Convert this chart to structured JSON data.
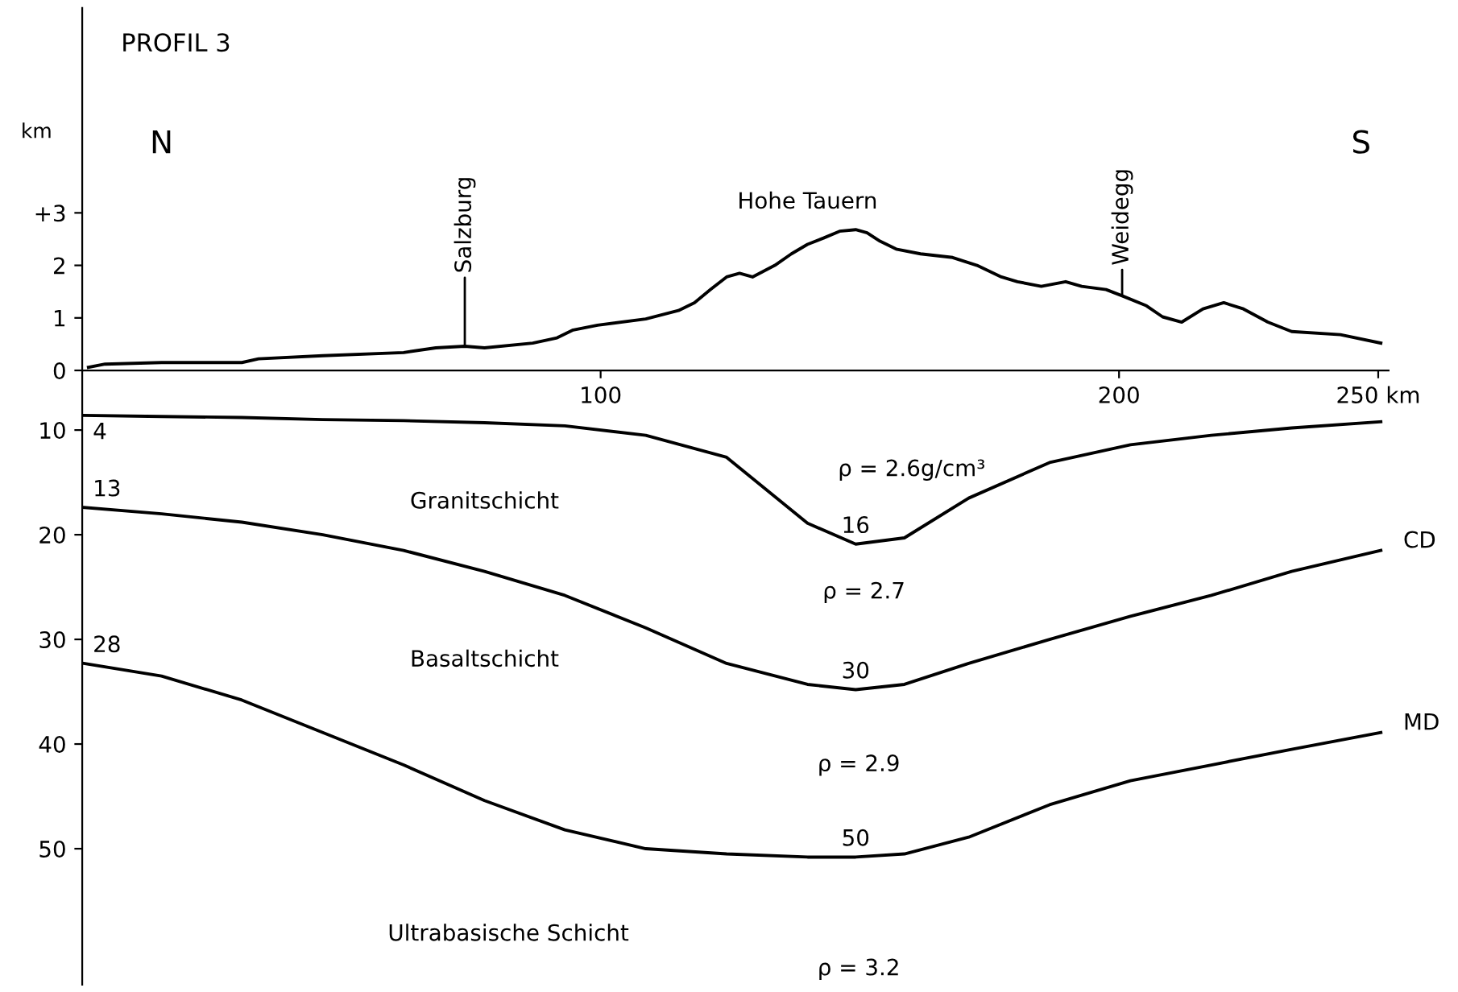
{
  "chart_data": [
    {
      "type": "line",
      "title": "PROFIL 3",
      "ylabel": "km",
      "xlim": [
        0,
        252
      ],
      "xticks": [
        100,
        200,
        {
          "value": 250,
          "label": "250 km"
        }
      ],
      "ylim": [
        0,
        6.9
      ],
      "yticks": [
        0,
        1,
        2,
        {
          "value": 3,
          "label": "+3"
        }
      ],
      "grid": false,
      "legend": false,
      "series": [
        {
          "color": "#000000",
          "x": [
            1.2,
            4.4,
            15.3,
            30.8,
            34.0,
            46.4,
            62.0,
            68.2,
            73.8,
            77.6,
            86.9,
            91.6,
            94.7,
            99.4,
            108.7,
            115.0,
            118.1,
            121.2,
            124.3,
            126.8,
            129.3,
            133.6,
            136.8,
            139.9,
            143.0,
            146.1,
            149.2,
            151.4,
            153.9,
            157.0,
            161.7,
            167.9,
            172.6,
            177.3,
            180.4,
            185.0,
            189.7,
            192.8,
            197.5,
            200.6,
            205.3,
            208.4,
            212.1,
            216.2,
            220.2,
            224.0,
            228.7,
            233.3,
            242.7,
            250.5
          ],
          "values": [
            0.06,
            0.12,
            0.15,
            0.15,
            0.22,
            0.28,
            0.34,
            0.43,
            0.46,
            0.43,
            0.52,
            0.62,
            0.77,
            0.86,
            0.98,
            1.14,
            1.29,
            1.54,
            1.78,
            1.85,
            1.78,
            2.0,
            2.22,
            2.4,
            2.52,
            2.65,
            2.68,
            2.62,
            2.46,
            2.31,
            2.22,
            2.15,
            2.0,
            1.78,
            1.69,
            1.6,
            1.69,
            1.6,
            1.54,
            1.42,
            1.23,
            1.02,
            0.92,
            1.17,
            1.29,
            1.17,
            0.92,
            0.74,
            0.68,
            0.52
          ]
        }
      ],
      "annotations": [
        "N",
        "S",
        "Hohe Tauern",
        {
          "text": "Salzburg",
          "x": 73.8,
          "y": 0.46
        },
        {
          "text": "Weidegg",
          "x": 200.6,
          "y": 1.45
        }
      ]
    },
    {
      "type": "line",
      "xlim": [
        0,
        252
      ],
      "ylim": [
        63,
        4.3
      ],
      "yticks": [
        10,
        20,
        30,
        40,
        50
      ],
      "tick_labels": "y",
      "grid": false,
      "legend": false,
      "x": [
        0.3,
        15.3,
        30.8,
        46.4,
        62.0,
        77.6,
        93.1,
        108.7,
        124.3,
        139.9,
        149.2,
        158.6,
        171.0,
        186.6,
        202.2,
        217.8,
        233.3,
        250.5
      ],
      "series": [
        {
          "color": "#000000",
          "values": [
            8.6,
            8.7,
            8.8,
            9.0,
            9.1,
            9.3,
            9.6,
            10.5,
            12.6,
            18.9,
            20.9,
            20.3,
            16.5,
            13.1,
            11.4,
            10.5,
            9.8,
            9.2
          ]
        },
        {
          "name": "CD",
          "color": "#000000",
          "values": [
            17.4,
            18.0,
            18.8,
            20.0,
            21.5,
            23.5,
            25.8,
            28.9,
            32.3,
            34.3,
            34.8,
            34.3,
            32.3,
            30.0,
            27.8,
            25.8,
            23.5,
            21.5
          ]
        },
        {
          "name": "MD",
          "color": "#000000",
          "values": [
            32.3,
            33.5,
            35.8,
            38.9,
            42.0,
            45.4,
            48.2,
            50.0,
            50.5,
            50.8,
            50.8,
            50.5,
            48.9,
            45.8,
            43.5,
            42.0,
            40.5,
            38.9
          ]
        }
      ],
      "annotations": [
        {
          "text": "4",
          "x": 0.3,
          "y": 8.6
        },
        {
          "text": "13",
          "x": 0.3,
          "y": 17.4
        },
        {
          "text": "28",
          "x": 0.3,
          "y": 32.3
        },
        {
          "text": "16",
          "x": 149.2,
          "y": 20.9
        },
        {
          "text": "30",
          "x": 149.2,
          "y": 34.8
        },
        {
          "text": "50",
          "x": 149.2,
          "y": 50.8
        },
        "Granitschicht",
        "ρ = 2.6g/cm³",
        "Basaltschicht",
        "ρ = 2.7",
        "ρ = 2.9",
        "Ultrabasische Schicht",
        "ρ = 3.2"
      ]
    }
  ]
}
